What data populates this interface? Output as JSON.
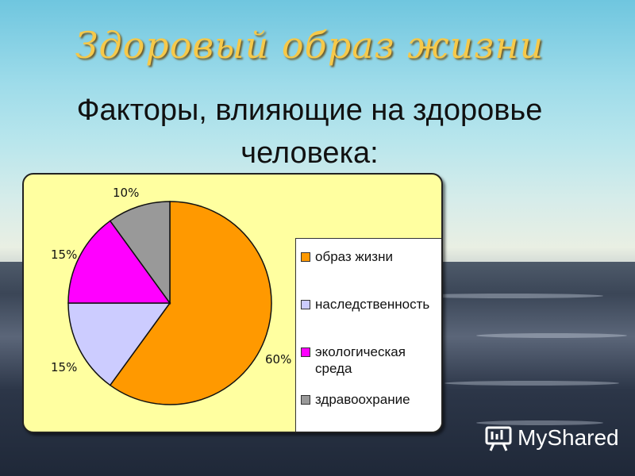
{
  "slide": {
    "title": "Здоровый образ жизни",
    "subtitle_line1": "Факторы, влияющие на здоровье",
    "subtitle_line2": "человека:"
  },
  "brand": {
    "name": "MyShared",
    "icon": "presentation-board-icon"
  },
  "chart_data": {
    "type": "pie",
    "categories": [
      "образ жизни",
      "наследственность",
      "экологическая среда",
      "здравоохрание"
    ],
    "values": [
      60,
      15,
      15,
      10
    ],
    "labels": [
      "60%",
      "15%",
      "15%",
      "10%"
    ],
    "colors": [
      "#ff9900",
      "#ccccff",
      "#ff00ff",
      "#999999"
    ],
    "legend_placement": "right"
  },
  "legend": {
    "items": [
      {
        "line1": "образ жизни",
        "line2": ""
      },
      {
        "line1": "наследственность",
        "line2": ""
      },
      {
        "line1": "экологическая",
        "line2": "среда"
      },
      {
        "line1": "здравоохрание",
        "line2": ""
      }
    ]
  }
}
